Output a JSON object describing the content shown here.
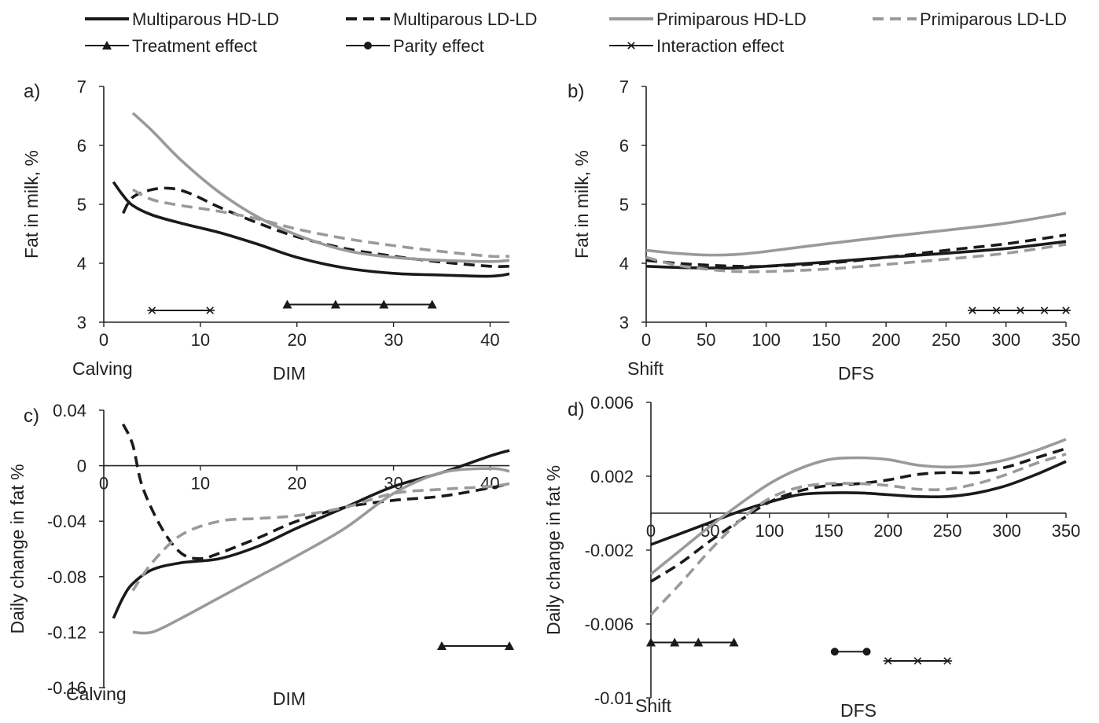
{
  "legend": [
    {
      "name": "Multiparous HD-LD",
      "color": "#1a1a1a",
      "dash": "solid",
      "marker": "none"
    },
    {
      "name": "Multiparous LD-LD",
      "color": "#1a1a1a",
      "dash": "dashed",
      "marker": "none"
    },
    {
      "name": "Primiparous HD-LD",
      "color": "#9a9a9a",
      "dash": "solid",
      "marker": "none"
    },
    {
      "name": "Primiparous LD-LD",
      "color": "#9a9a9a",
      "dash": "dashed",
      "marker": "none"
    },
    {
      "name": "Treatment effect",
      "color": "#1a1a1a",
      "dash": "solid",
      "marker": "triangle"
    },
    {
      "name": "Parity effect",
      "color": "#1a1a1a",
      "dash": "solid",
      "marker": "circle"
    },
    {
      "name": "Interaction effect",
      "color": "#1a1a1a",
      "dash": "solid",
      "marker": "star"
    }
  ],
  "chart_data": [
    {
      "panel": "a)",
      "type": "line",
      "xlabel": "DIM",
      "xlabel_start": "Calving",
      "ylabel": "Fat in milk, %",
      "xlim": [
        0,
        42
      ],
      "ylim": [
        3,
        7
      ],
      "xticks": [
        0,
        10,
        20,
        30,
        40
      ],
      "xtick_labels": [
        "0",
        "10",
        "20",
        "30",
        "40"
      ],
      "yticks": [
        3,
        4,
        5,
        6,
        7
      ],
      "ytick_labels": [
        "3",
        "4",
        "5",
        "6",
        "7"
      ],
      "series": [
        {
          "name": "Multiparous HD-LD",
          "x": [
            1,
            2,
            3,
            5,
            8,
            12,
            16,
            20,
            25,
            30,
            35,
            40,
            42
          ],
          "y": [
            5.38,
            5.15,
            4.98,
            4.82,
            4.68,
            4.52,
            4.32,
            4.1,
            3.92,
            3.83,
            3.8,
            3.78,
            3.82
          ]
        },
        {
          "name": "Multiparous LD-LD",
          "x": [
            2,
            3,
            5,
            7,
            9,
            12,
            16,
            20,
            25,
            30,
            35,
            40,
            42
          ],
          "y": [
            4.85,
            5.12,
            5.25,
            5.27,
            5.18,
            4.95,
            4.68,
            4.45,
            4.25,
            4.12,
            4.02,
            3.95,
            3.95
          ]
        },
        {
          "name": "Primiparous HD-LD",
          "x": [
            3,
            5,
            8,
            12,
            16,
            20,
            25,
            30,
            35,
            40,
            42
          ],
          "y": [
            6.55,
            6.25,
            5.75,
            5.2,
            4.78,
            4.48,
            4.22,
            4.1,
            4.05,
            4.03,
            4.05
          ]
        },
        {
          "name": "Primiparous LD-LD",
          "x": [
            3,
            5,
            8,
            12,
            16,
            20,
            25,
            30,
            35,
            40,
            42
          ],
          "y": [
            5.25,
            5.08,
            4.98,
            4.88,
            4.75,
            4.58,
            4.42,
            4.3,
            4.2,
            4.12,
            4.12
          ]
        }
      ],
      "effects": [
        {
          "name": "Interaction effect",
          "marker": "star",
          "x": [
            5,
            11
          ],
          "y": 3.2
        },
        {
          "name": "Treatment effect",
          "marker": "triangle",
          "x": [
            19,
            24,
            29,
            34
          ],
          "y": 3.3
        }
      ]
    },
    {
      "panel": "b)",
      "type": "line",
      "xlabel": "DFS",
      "xlabel_start": "Shift",
      "ylabel": "Fat in milk, %",
      "xlim": [
        0,
        350
      ],
      "ylim": [
        3,
        7
      ],
      "xticks": [
        0,
        50,
        100,
        150,
        200,
        250,
        300,
        350
      ],
      "xtick_labels": [
        "0",
        "50",
        "100",
        "150",
        "200",
        "250",
        "300",
        "350"
      ],
      "yticks": [
        3,
        4,
        5,
        6,
        7
      ],
      "ytick_labels": [
        "3",
        "4",
        "5",
        "6",
        "7"
      ],
      "series": [
        {
          "name": "Multiparous HD-LD",
          "x": [
            0,
            25,
            50,
            75,
            100,
            150,
            200,
            250,
            300,
            350
          ],
          "y": [
            3.95,
            3.93,
            3.92,
            3.92,
            3.95,
            4.02,
            4.1,
            4.17,
            4.25,
            4.37
          ]
        },
        {
          "name": "Multiparous LD-LD",
          "x": [
            0,
            25,
            50,
            75,
            100,
            150,
            200,
            250,
            300,
            350
          ],
          "y": [
            4.05,
            4.0,
            3.97,
            3.95,
            3.95,
            4.0,
            4.1,
            4.22,
            4.33,
            4.48
          ]
        },
        {
          "name": "Primiparous HD-LD",
          "x": [
            0,
            25,
            50,
            75,
            100,
            150,
            200,
            250,
            300,
            350
          ],
          "y": [
            4.22,
            4.17,
            4.14,
            4.15,
            4.2,
            4.33,
            4.45,
            4.56,
            4.68,
            4.85
          ]
        },
        {
          "name": "Primiparous LD-LD",
          "x": [
            0,
            25,
            50,
            75,
            100,
            150,
            200,
            250,
            300,
            350
          ],
          "y": [
            4.1,
            3.97,
            3.9,
            3.86,
            3.86,
            3.9,
            3.98,
            4.07,
            4.17,
            4.32
          ]
        }
      ],
      "effects": [
        {
          "name": "Interaction effect",
          "marker": "star",
          "x": [
            272,
            292,
            312,
            332,
            350
          ],
          "y": 3.2
        }
      ]
    },
    {
      "panel": "c)",
      "type": "line",
      "xlabel": "DIM",
      "xlabel_start": "Calving",
      "ylabel": "Daily change in fat %",
      "xlim": [
        0,
        42
      ],
      "ylim": [
        -0.16,
        0.04
      ],
      "xticks": [
        0,
        10,
        20,
        30,
        40
      ],
      "xtick_labels": [
        "0",
        "10",
        "20",
        "30",
        "40"
      ],
      "yticks": [
        -0.16,
        -0.12,
        -0.08,
        -0.04,
        0,
        0.04
      ],
      "ytick_labels": [
        "-0.16",
        "-0.12",
        "-0.08",
        "-0.04",
        "0",
        "0.04"
      ],
      "series": [
        {
          "name": "Multiparous HD-LD",
          "x": [
            1,
            2,
            3,
            5,
            8,
            12,
            16,
            20,
            25,
            30,
            35,
            40,
            42
          ],
          "y": [
            -0.11,
            -0.095,
            -0.085,
            -0.075,
            -0.07,
            -0.067,
            -0.058,
            -0.045,
            -0.03,
            -0.015,
            -0.005,
            0.007,
            0.011
          ]
        },
        {
          "name": "Multiparous LD-LD",
          "x": [
            2,
            3,
            4,
            6,
            8,
            10,
            12,
            16,
            20,
            25,
            30,
            35,
            40,
            42
          ],
          "y": [
            0.03,
            0.015,
            -0.015,
            -0.045,
            -0.063,
            -0.067,
            -0.063,
            -0.052,
            -0.04,
            -0.03,
            -0.025,
            -0.022,
            -0.016,
            -0.013
          ]
        },
        {
          "name": "Primiparous HD-LD",
          "x": [
            3,
            5,
            8,
            12,
            16,
            20,
            25,
            30,
            35,
            40,
            42
          ],
          "y": [
            -0.12,
            -0.12,
            -0.11,
            -0.095,
            -0.08,
            -0.065,
            -0.045,
            -0.02,
            -0.005,
            -0.002,
            -0.004
          ]
        },
        {
          "name": "Primiparous LD-LD",
          "x": [
            3,
            5,
            8,
            12,
            16,
            20,
            25,
            30,
            35,
            40,
            42
          ],
          "y": [
            -0.09,
            -0.07,
            -0.05,
            -0.04,
            -0.038,
            -0.036,
            -0.03,
            -0.02,
            -0.017,
            -0.015,
            -0.013
          ]
        }
      ],
      "effects": [
        {
          "name": "Treatment effect",
          "marker": "triangle",
          "x": [
            35,
            42
          ],
          "y": -0.13
        }
      ]
    },
    {
      "panel": "d)",
      "type": "line",
      "xlabel": "DFS",
      "xlabel_start": "Shift",
      "ylabel": "Daily change in fat %",
      "xlim": [
        0,
        350
      ],
      "ylim": [
        -0.01,
        0.006
      ],
      "xticks": [
        0,
        50,
        100,
        150,
        200,
        250,
        300,
        350
      ],
      "xtick_labels": [
        "0",
        "50",
        "100",
        "150",
        "200",
        "250",
        "300",
        "350"
      ],
      "yticks": [
        -0.01,
        -0.006,
        -0.002,
        0.002,
        0.006
      ],
      "ytick_labels": [
        "-0.01",
        "-0.006",
        "-0.002",
        "0.002",
        "0.006"
      ],
      "series": [
        {
          "name": "Multiparous HD-LD",
          "x": [
            0,
            25,
            50,
            75,
            100,
            125,
            150,
            175,
            200,
            225,
            250,
            275,
            300,
            325,
            350
          ],
          "y": [
            -0.0017,
            -0.0011,
            -0.0005,
            0.0001,
            0.0006,
            0.001,
            0.0011,
            0.0011,
            0.001,
            0.0009,
            0.0009,
            0.0011,
            0.0015,
            0.0021,
            0.0028
          ]
        },
        {
          "name": "Multiparous LD-LD",
          "x": [
            0,
            25,
            50,
            75,
            100,
            125,
            150,
            175,
            200,
            225,
            250,
            275,
            300,
            325,
            350
          ],
          "y": [
            -0.0037,
            -0.0027,
            -0.0015,
            -0.0004,
            0.0006,
            0.0012,
            0.0015,
            0.0016,
            0.0018,
            0.0021,
            0.0022,
            0.0022,
            0.0025,
            0.003,
            0.0035
          ]
        },
        {
          "name": "Primiparous HD-LD",
          "x": [
            0,
            25,
            50,
            75,
            100,
            125,
            150,
            175,
            200,
            225,
            250,
            275,
            300,
            325,
            350
          ],
          "y": [
            -0.0033,
            -0.002,
            -0.0007,
            0.0005,
            0.0016,
            0.0024,
            0.0029,
            0.003,
            0.0029,
            0.0026,
            0.0025,
            0.0026,
            0.0029,
            0.0034,
            0.004
          ]
        },
        {
          "name": "Primiparous LD-LD",
          "x": [
            0,
            25,
            50,
            75,
            100,
            125,
            150,
            175,
            200,
            225,
            250,
            275,
            300,
            325,
            350
          ],
          "y": [
            -0.0055,
            -0.0038,
            -0.002,
            -0.0004,
            0.0008,
            0.0014,
            0.0016,
            0.0016,
            0.0015,
            0.0013,
            0.0013,
            0.0016,
            0.0021,
            0.0027,
            0.0032
          ]
        }
      ],
      "effects": [
        {
          "name": "Treatment effect",
          "marker": "triangle",
          "x": [
            0,
            20,
            40,
            70
          ],
          "y": -0.007
        },
        {
          "name": "Parity effect",
          "marker": "circle",
          "x": [
            155,
            182
          ],
          "y": -0.0075
        },
        {
          "name": "Interaction effect",
          "marker": "star",
          "x": [
            200,
            225,
            250
          ],
          "y": -0.008
        }
      ]
    }
  ]
}
